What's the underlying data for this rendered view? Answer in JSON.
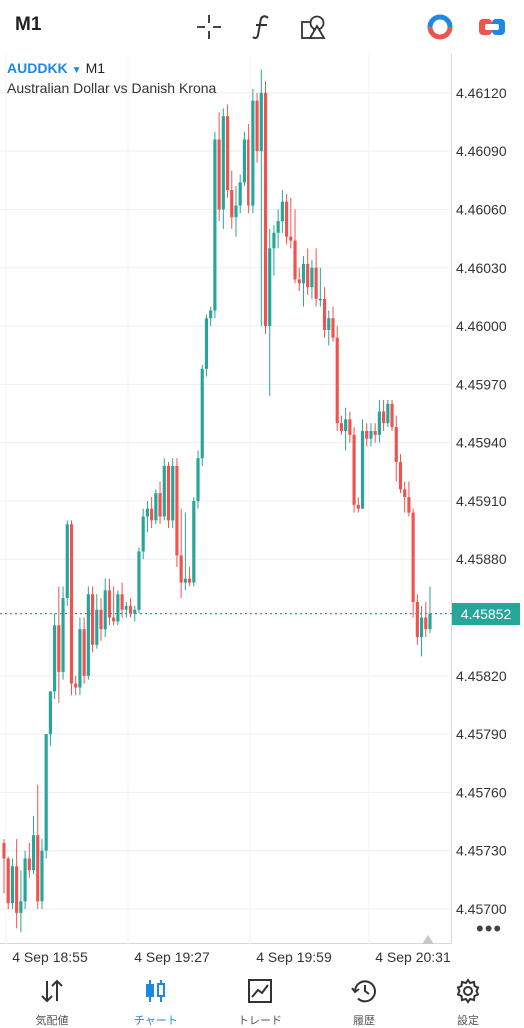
{
  "header": {
    "timeframe": "M1",
    "icons": [
      "crosshair-icon",
      "function-icon",
      "objects-icon",
      "account-icon",
      "trade-toggle-icon"
    ]
  },
  "chart": {
    "symbol": "AUDDKK",
    "timeframe": "M1",
    "description": "Australian Dollar vs Danish Krona",
    "current_price_label": "4.45852",
    "more_label": "•••"
  },
  "chart_data": {
    "type": "candlestick",
    "title": "AUDDKK M1",
    "subtitle": "Australian Dollar vs Danish Krona",
    "y_ticks": [
      "4.46120",
      "4.46090",
      "4.46060",
      "4.46030",
      "4.46000",
      "4.45970",
      "4.45940",
      "4.45910",
      "4.45880",
      "4.45820",
      "4.45790",
      "4.45760",
      "4.45730",
      "4.45700"
    ],
    "x_ticks": [
      "4 Sep 18:55",
      "4 Sep 19:27",
      "4 Sep 19:59",
      "4 Sep 20:31"
    ],
    "ylim": [
      4.45682,
      4.4614
    ],
    "current_price": 4.45852,
    "colors": {
      "up": "#26a69a",
      "down": "#ef5350"
    },
    "candles": [
      [
        4.45734,
        4.45736,
        4.45708,
        4.45726
      ],
      [
        4.45726,
        4.45727,
        4.457,
        4.45703
      ],
      [
        4.45703,
        4.45726,
        4.457,
        4.45722
      ],
      [
        4.45722,
        4.45736,
        4.4569,
        4.45698
      ],
      [
        4.45698,
        4.4572,
        4.45688,
        4.45704
      ],
      [
        4.45704,
        4.4573,
        4.457,
        4.45726
      ],
      [
        4.45726,
        4.45734,
        4.45716,
        4.4572
      ],
      [
        4.4572,
        4.45748,
        4.45718,
        4.45738
      ],
      [
        4.45738,
        4.45764,
        4.457,
        4.45704
      ],
      [
        4.45704,
        4.45736,
        4.457,
        4.4573
      ],
      [
        4.4573,
        4.4579,
        4.45726,
        4.4579
      ],
      [
        4.4579,
        4.45812,
        4.45784,
        4.45812
      ],
      [
        4.45812,
        4.45852,
        4.45808,
        4.45846
      ],
      [
        4.45846,
        4.45866,
        4.45806,
        4.45822
      ],
      [
        4.45822,
        4.45866,
        4.45818,
        4.4586
      ],
      [
        4.4586,
        4.459,
        4.45856,
        4.45898
      ],
      [
        4.45898,
        4.459,
        4.4581,
        4.45816
      ],
      [
        4.45816,
        4.4582,
        4.4581,
        4.45814
      ],
      [
        4.45814,
        4.4585,
        4.4581,
        4.45844
      ],
      [
        4.45844,
        4.4585,
        4.45816,
        4.4582
      ],
      [
        4.4582,
        4.45866,
        4.45818,
        4.45862
      ],
      [
        4.45862,
        4.45866,
        4.45832,
        4.45836
      ],
      [
        4.45836,
        4.45862,
        4.45834,
        4.45854
      ],
      [
        4.45854,
        4.4586,
        4.45838,
        4.45844
      ],
      [
        4.45844,
        4.4587,
        4.4584,
        4.45864
      ],
      [
        4.45864,
        4.4587,
        4.45846,
        4.4585
      ],
      [
        4.4585,
        4.45866,
        4.45846,
        4.45848
      ],
      [
        4.45848,
        4.45864,
        4.45846,
        4.45862
      ],
      [
        4.45862,
        4.45868,
        4.4585,
        4.45854
      ],
      [
        4.45854,
        4.45858,
        4.4585,
        4.45856
      ],
      [
        4.45856,
        4.4586,
        4.4585,
        4.45852
      ],
      [
        4.45852,
        4.45856,
        4.45848,
        4.45854
      ],
      [
        4.45854,
        4.45886,
        4.45852,
        4.45884
      ],
      [
        4.45884,
        4.45906,
        4.4588,
        4.45902
      ],
      [
        4.45902,
        4.4591,
        4.45894,
        4.45906
      ],
      [
        4.45906,
        4.45912,
        4.45896,
        4.459
      ],
      [
        4.459,
        4.45916,
        4.45898,
        4.45914
      ],
      [
        4.45914,
        4.4592,
        4.45898,
        4.45902
      ],
      [
        4.45902,
        4.45932,
        4.459,
        4.45928
      ],
      [
        4.45928,
        4.4593,
        4.45896,
        4.459
      ],
      [
        4.459,
        4.45932,
        4.45896,
        4.45928
      ],
      [
        4.45928,
        4.45932,
        4.45876,
        4.45882
      ],
      [
        4.45882,
        4.45906,
        4.4586,
        4.45868
      ],
      [
        4.45868,
        4.45904,
        4.45864,
        4.4587
      ],
      [
        4.4587,
        4.45876,
        4.45866,
        4.45868
      ],
      [
        4.45868,
        4.45912,
        4.45866,
        4.4591
      ],
      [
        4.4591,
        4.45936,
        4.45906,
        4.45932
      ],
      [
        4.45932,
        4.4598,
        4.45928,
        4.45978
      ],
      [
        4.45978,
        4.46006,
        4.45974,
        4.46004
      ],
      [
        4.46004,
        4.4601,
        4.46,
        4.46008
      ],
      [
        4.46008,
        4.461,
        4.46004,
        4.46096
      ],
      [
        4.46096,
        4.4611,
        4.46054,
        4.4606
      ],
      [
        4.4606,
        4.46112,
        4.4605,
        4.46108
      ],
      [
        4.46108,
        4.46114,
        4.46066,
        4.4607
      ],
      [
        4.4607,
        4.4608,
        4.4605,
        4.46056
      ],
      [
        4.46056,
        4.46072,
        4.46046,
        4.46062
      ],
      [
        4.46062,
        4.46078,
        4.46058,
        4.46074
      ],
      [
        4.46074,
        4.461,
        4.46072,
        4.46096
      ],
      [
        4.46096,
        4.46104,
        4.46058,
        4.46062
      ],
      [
        4.46062,
        4.46122,
        4.46058,
        4.46116
      ],
      [
        4.46116,
        4.4612,
        4.46084,
        4.4609
      ],
      [
        4.4609,
        4.46132,
        4.46,
        4.4612
      ],
      [
        4.4612,
        4.46126,
        4.45996,
        4.46
      ],
      [
        4.46,
        4.4605,
        4.45964,
        4.4604
      ],
      [
        4.4604,
        4.46052,
        4.46026,
        4.46048
      ],
      [
        4.46048,
        4.4606,
        4.4604,
        4.46054
      ],
      [
        4.46054,
        4.4607,
        4.46048,
        4.46064
      ],
      [
        4.46064,
        4.46068,
        4.46042,
        4.46046
      ],
      [
        4.46046,
        4.46066,
        4.4604,
        4.46044
      ],
      [
        4.46044,
        4.4606,
        4.46022,
        4.46024
      ],
      [
        4.46024,
        4.4603,
        4.46018,
        4.46022
      ],
      [
        4.46022,
        4.46036,
        4.4601,
        4.46032
      ],
      [
        4.46032,
        4.4604,
        4.46016,
        4.4602
      ],
      [
        4.4602,
        4.46034,
        4.46014,
        4.4603
      ],
      [
        4.4603,
        4.4604,
        4.4601,
        4.46014
      ],
      [
        4.46014,
        4.4603,
        4.4601,
        4.46014
      ],
      [
        4.46014,
        4.4602,
        4.45994,
        4.45998
      ],
      [
        4.45998,
        4.46008,
        4.4599,
        4.46004
      ],
      [
        4.46004,
        4.4601,
        4.45992,
        4.45994
      ],
      [
        4.45994,
        4.46,
        4.45946,
        4.4595
      ],
      [
        4.4595,
        4.45954,
        4.45944,
        4.45946
      ],
      [
        4.45946,
        4.45958,
        4.45936,
        4.45952
      ],
      [
        4.45952,
        4.45956,
        4.4594,
        4.45944
      ],
      [
        4.45944,
        4.45948,
        4.45904,
        4.45908
      ],
      [
        4.45908,
        4.45912,
        4.45904,
        4.45906
      ],
      [
        4.45906,
        4.45952,
        4.45906,
        4.45946
      ],
      [
        4.45946,
        4.4595,
        4.45938,
        4.45942
      ],
      [
        4.45942,
        4.4595,
        4.45938,
        4.45946
      ],
      [
        4.45946,
        4.4595,
        4.4594,
        4.45944
      ],
      [
        4.45944,
        4.45962,
        4.4594,
        4.45956
      ],
      [
        4.45956,
        4.45962,
        4.45946,
        4.4595
      ],
      [
        4.4595,
        4.45962,
        4.45948,
        4.4596
      ],
      [
        4.4596,
        4.45962,
        4.45946,
        4.45948
      ],
      [
        4.45948,
        4.45954,
        4.4592,
        4.4593
      ],
      [
        4.4593,
        4.45934,
        4.45914,
        4.45916
      ],
      [
        4.45916,
        4.4592,
        4.45904,
        4.45912
      ],
      [
        4.45912,
        4.4592,
        4.45902,
        4.45904
      ],
      [
        4.45904,
        4.45906,
        4.4585,
        4.45858
      ],
      [
        4.45858,
        4.45862,
        4.45836,
        4.4584
      ],
      [
        4.4584,
        4.45856,
        4.4583,
        4.4585
      ],
      [
        4.4585,
        4.45858,
        4.4584,
        4.45844
      ],
      [
        4.45844,
        4.45866,
        4.45842,
        4.45852
      ]
    ]
  },
  "bottom_nav": {
    "items": [
      {
        "label": "気配値",
        "icon": "quotes-icon"
      },
      {
        "label": "チャート",
        "icon": "chart-icon"
      },
      {
        "label": "トレード",
        "icon": "trade-icon"
      },
      {
        "label": "履歴",
        "icon": "history-icon"
      },
      {
        "label": "設定",
        "icon": "settings-icon"
      }
    ],
    "active_index": 1
  }
}
